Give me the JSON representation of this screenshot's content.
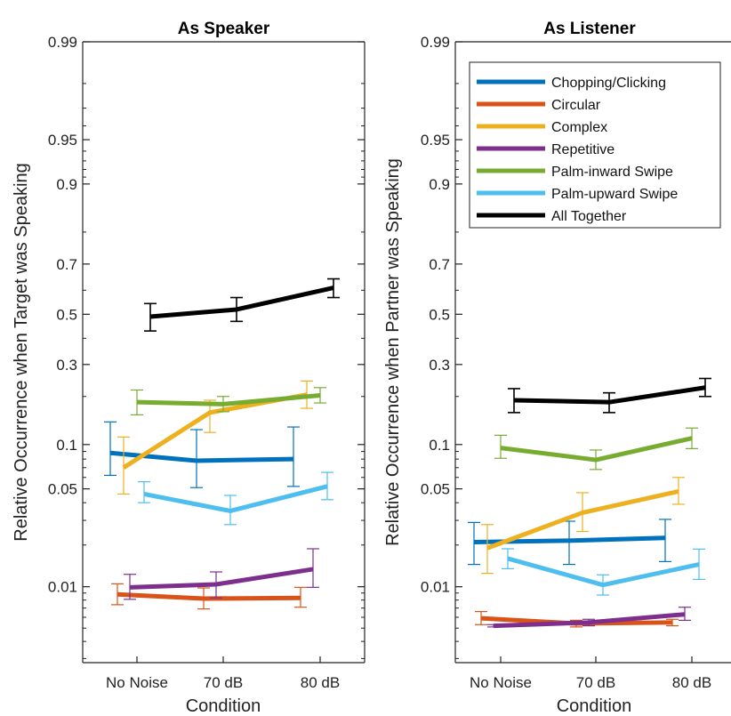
{
  "chart_data": [
    {
      "type": "line",
      "title": "As Speaker",
      "xlabel": "Condition",
      "ylabel": "Relative Occurrence when Target was Speaking",
      "categories": [
        "No Noise",
        "70 dB",
        "80 dB"
      ],
      "yscale": "logit",
      "ylim": [
        0.0028,
        0.99
      ],
      "yticks": [
        "0.01",
        "0.05",
        "0.1",
        "0.3",
        "0.5",
        "0.7",
        "0.9",
        "0.95",
        "0.99"
      ],
      "grid": false,
      "series": [
        {
          "name": "Chopping/Clicking",
          "color": "#0072BD",
          "values": [
            0.088,
            0.078,
            0.08
          ],
          "err_low": [
            0.062,
            0.051,
            0.052
          ],
          "err_high": [
            0.14,
            0.125,
            0.13
          ]
        },
        {
          "name": "Circular",
          "color": "#D95319",
          "values": [
            0.0088,
            0.0082,
            0.0083
          ],
          "err_low": [
            0.0074,
            0.0069,
            0.0071
          ],
          "err_high": [
            0.0105,
            0.0098,
            0.0099
          ]
        },
        {
          "name": "Complex",
          "color": "#EDB120",
          "values": [
            0.07,
            0.16,
            0.205
          ],
          "err_low": [
            0.046,
            0.12,
            0.17
          ],
          "err_high": [
            0.112,
            0.19,
            0.245
          ]
        },
        {
          "name": "Repetitive",
          "color": "#7E2F8E",
          "values": [
            0.0099,
            0.0104,
            0.0134
          ],
          "err_low": [
            0.0081,
            0.0083,
            0.0099
          ],
          "err_high": [
            0.0123,
            0.0128,
            0.0188
          ]
        },
        {
          "name": "Palm-inward Swipe",
          "color": "#77AC30",
          "values": [
            0.185,
            0.18,
            0.203
          ],
          "err_low": [
            0.155,
            0.162,
            0.183
          ],
          "err_high": [
            0.218,
            0.2,
            0.225
          ]
        },
        {
          "name": "Palm-upward Swipe",
          "color": "#4DBEEE",
          "values": [
            0.046,
            0.035,
            0.052
          ],
          "err_low": [
            0.04,
            0.028,
            0.042
          ],
          "err_high": [
            0.056,
            0.045,
            0.065
          ]
        },
        {
          "name": "All Together",
          "color": "#000000",
          "values": [
            0.49,
            0.52,
            0.61
          ],
          "err_low": [
            0.43,
            0.47,
            0.57
          ],
          "err_high": [
            0.545,
            0.57,
            0.645
          ]
        }
      ]
    },
    {
      "type": "line",
      "title": "As Listener",
      "xlabel": "Condition",
      "ylabel": "Relative Occurrence when Partner was Speaking",
      "categories": [
        "No Noise",
        "70 dB",
        "80 dB"
      ],
      "yscale": "logit",
      "ylim": [
        0.0028,
        0.99
      ],
      "yticks": [
        "0.01",
        "0.05",
        "0.1",
        "0.3",
        "0.5",
        "0.7",
        "0.9",
        "0.95",
        "0.99"
      ],
      "grid": false,
      "legend": "top-right",
      "series": [
        {
          "name": "Chopping/Clicking",
          "color": "#0072BD",
          "values": [
            0.021,
            0.0215,
            0.0225
          ],
          "err_low": [
            0.0145,
            0.0145,
            0.0152
          ],
          "err_high": [
            0.029,
            0.0296,
            0.0305
          ]
        },
        {
          "name": "Circular",
          "color": "#D95319",
          "values": [
            0.0059,
            0.0054,
            0.0055
          ],
          "err_low": [
            0.0053,
            0.0051,
            0.0052
          ],
          "err_high": [
            0.0066,
            0.0057,
            0.0058
          ]
        },
        {
          "name": "Complex",
          "color": "#EDB120",
          "values": [
            0.019,
            0.034,
            0.048
          ],
          "err_low": [
            0.0125,
            0.025,
            0.039
          ],
          "err_high": [
            0.028,
            0.047,
            0.06
          ]
        },
        {
          "name": "Repetitive",
          "color": "#7E2F8E",
          "values": [
            0.0052,
            0.0055,
            0.0063
          ],
          "err_low": [
            0.0051,
            0.0052,
            0.0057
          ],
          "err_high": [
            0.0053,
            0.0058,
            0.0071
          ]
        },
        {
          "name": "Palm-inward Swipe",
          "color": "#77AC30",
          "values": [
            0.095,
            0.079,
            0.11
          ],
          "err_low": [
            0.081,
            0.068,
            0.094
          ],
          "err_high": [
            0.115,
            0.092,
            0.128
          ]
        },
        {
          "name": "Palm-upward Swipe",
          "color": "#4DBEEE",
          "values": [
            0.016,
            0.0103,
            0.0145
          ],
          "err_low": [
            0.0135,
            0.0087,
            0.0113
          ],
          "err_high": [
            0.0188,
            0.0122,
            0.0187
          ]
        },
        {
          "name": "All Together",
          "color": "#000000",
          "values": [
            0.19,
            0.185,
            0.225
          ],
          "err_low": [
            0.16,
            0.16,
            0.2
          ],
          "err_high": [
            0.222,
            0.21,
            0.253
          ]
        }
      ]
    }
  ]
}
